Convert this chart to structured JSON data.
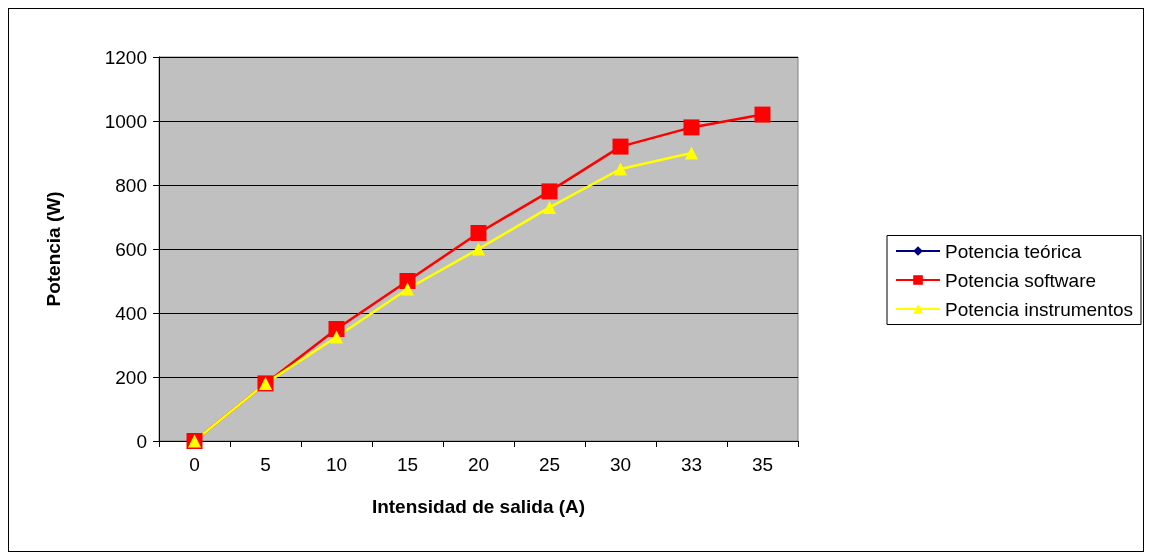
{
  "chart_data": {
    "type": "line",
    "xlabel": "Intensidad de salida (A)",
    "ylabel": "Potencia (W)",
    "categories": [
      "0",
      "5",
      "10",
      "15",
      "20",
      "25",
      "30",
      "33",
      "35"
    ],
    "series": [
      {
        "name": "Potencia teórica",
        "color": "#000080",
        "marker": "diamond",
        "values": [
          null,
          null,
          null,
          null,
          null,
          null,
          null,
          null,
          null
        ]
      },
      {
        "name": "Potencia software",
        "color": "#ff0000",
        "marker": "square",
        "values": [
          0,
          180,
          350,
          500,
          650,
          780,
          920,
          980,
          1020
        ]
      },
      {
        "name": "Potencia instrumentos",
        "color": "#ffff00",
        "marker": "triangle",
        "values": [
          0,
          180,
          325,
          475,
          600,
          730,
          850,
          900,
          null
        ]
      }
    ],
    "ylim": [
      0,
      1200
    ],
    "yticks": [
      0,
      200,
      400,
      600,
      800,
      1000,
      1200
    ],
    "grid": "y",
    "legend": "right"
  }
}
